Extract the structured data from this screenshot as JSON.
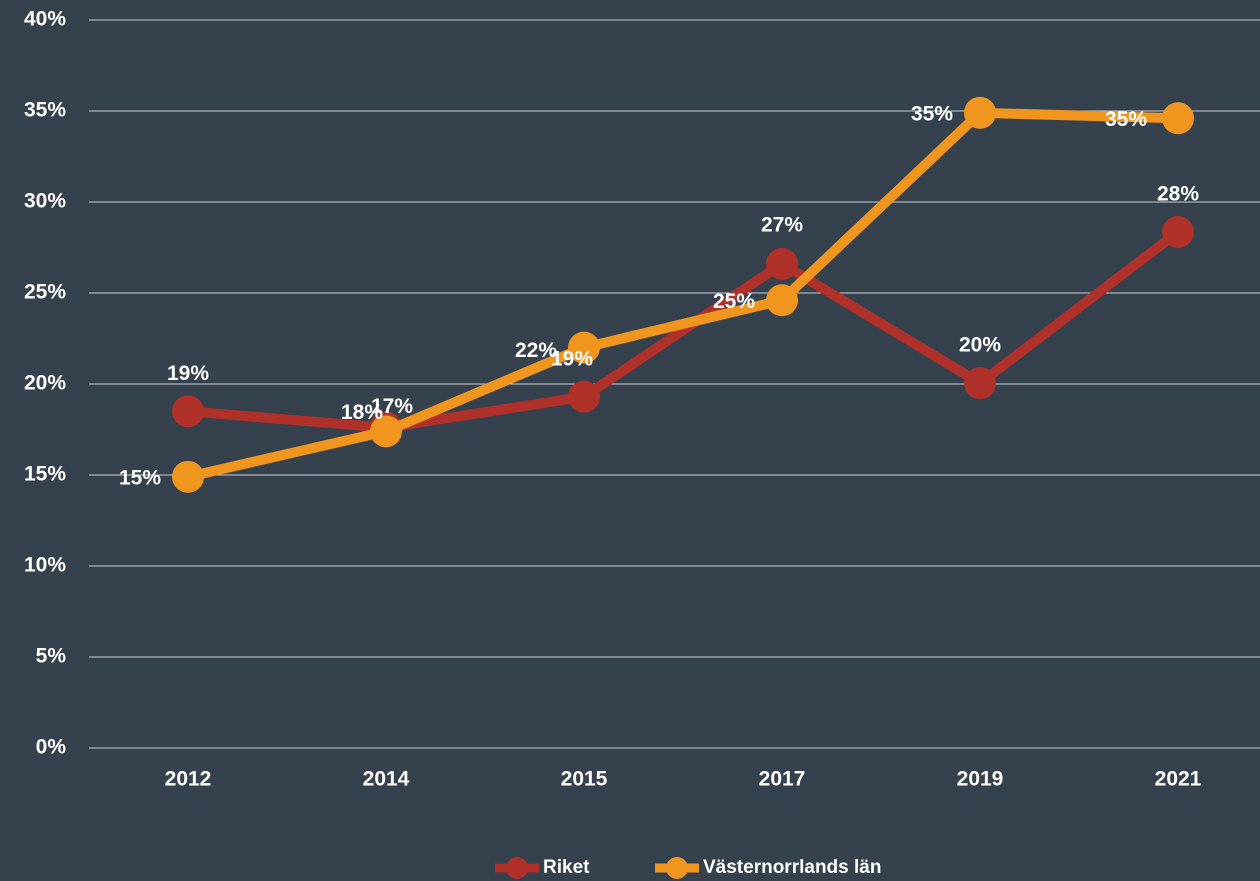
{
  "chart_data": {
    "type": "line",
    "categories": [
      "2012",
      "2014",
      "2015",
      "2017",
      "2019",
      "2021"
    ],
    "series": [
      {
        "name": "Riket",
        "color": "#b0302a",
        "values": [
          18.5,
          17.6,
          19.3,
          26.6,
          20.05,
          28.35
        ],
        "value_labels": [
          "19%",
          "18%",
          "19%",
          "27%",
          "20%",
          "28%"
        ]
      },
      {
        "name": "Västernorrlands län",
        "color": "#f0961e",
        "values": [
          14.9,
          17.4,
          22.0,
          24.6,
          34.9,
          34.6
        ],
        "value_labels": [
          "15%",
          "17%",
          "22%",
          "25%",
          "35%",
          "35%"
        ]
      }
    ],
    "ylim": [
      0,
      40
    ],
    "yticks": [
      {
        "value": 0,
        "label": "0%"
      },
      {
        "value": 5,
        "label": "5%"
      },
      {
        "value": 10,
        "label": "10%"
      },
      {
        "value": 15,
        "label": "15%"
      },
      {
        "value": 20,
        "label": "20%"
      },
      {
        "value": 25,
        "label": "25%"
      },
      {
        "value": 30,
        "label": "30%"
      },
      {
        "value": 35,
        "label": "35%"
      },
      {
        "value": 40,
        "label": "40%"
      }
    ],
    "grid": true,
    "legend": "bottom"
  }
}
